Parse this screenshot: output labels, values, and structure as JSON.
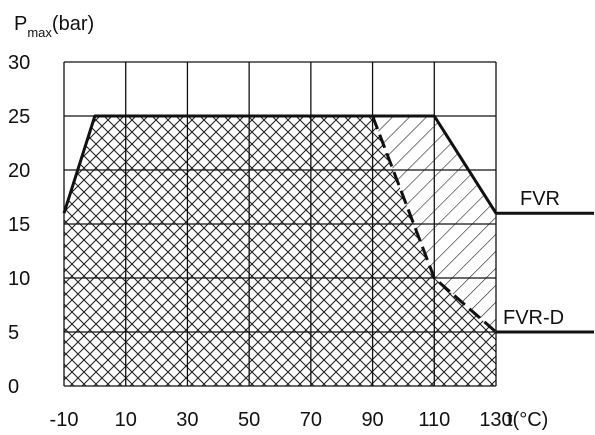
{
  "chart_data": {
    "type": "area",
    "ylabel_main": "P",
    "ylabel_sub": "max",
    "ylabel_unit": "(bar)",
    "xlabel": "t(°C)",
    "xlim": [
      -10,
      130
    ],
    "ylim": [
      0,
      30
    ],
    "x_ticks": [
      -10,
      10,
      30,
      50,
      70,
      90,
      110,
      130
    ],
    "x_tick_labels": [
      "-10",
      "10",
      "30",
      "50",
      "70",
      "90",
      "110",
      "130"
    ],
    "y_ticks": [
      0,
      5,
      10,
      15,
      20,
      25,
      30
    ],
    "y_tick_labels": [
      "0",
      "5",
      "10",
      "15",
      "20",
      "25",
      "30"
    ],
    "x_grid": [
      -10,
      10,
      30,
      50,
      70,
      90,
      110,
      130
    ],
    "y_grid": [
      0,
      5,
      10,
      15,
      20,
      25,
      30
    ],
    "grid": true,
    "series": [
      {
        "name": "FVR",
        "pattern": "single-hatch",
        "x": [
          -10,
          0,
          110,
          130
        ],
        "y": [
          16,
          25,
          25,
          16
        ],
        "line_style": "solid",
        "extends_right_to_label": true
      },
      {
        "name": "FVR-D",
        "pattern": "cross-hatch",
        "x": [
          -10,
          0,
          90,
          110,
          130
        ],
        "y": [
          16,
          25,
          25,
          10,
          5
        ],
        "line_style": "dashed",
        "extends_right_to_label": true
      }
    ]
  }
}
